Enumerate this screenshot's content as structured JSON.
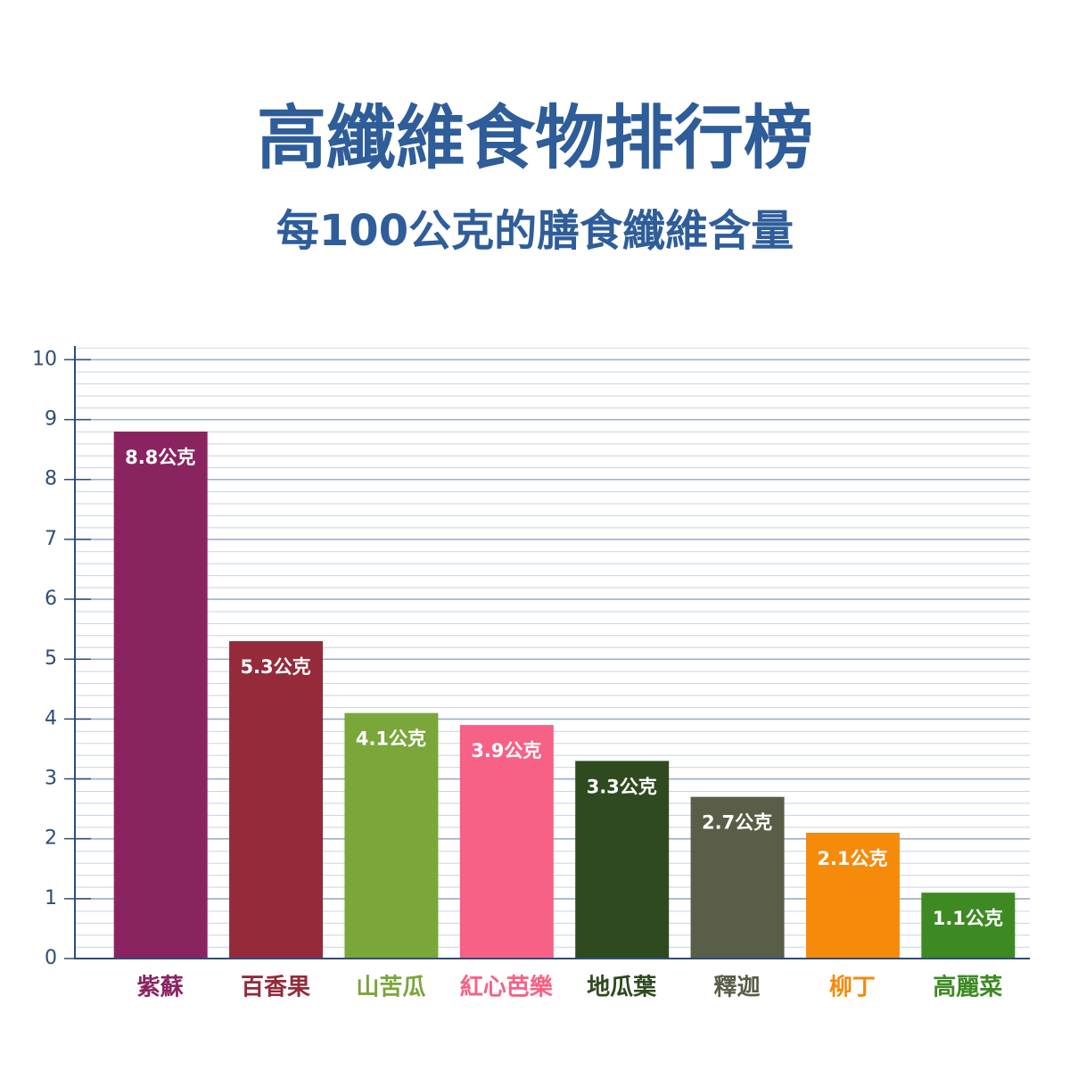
{
  "chart_data": {
    "type": "bar",
    "title": "高纖維食物排行榜",
    "subtitle": "每100公克的膳食纖維含量",
    "categories": [
      "紫蘇",
      "百香果",
      "山苦瓜",
      "紅心芭樂",
      "地瓜葉",
      "釋迦",
      "柳丁",
      "高麗菜"
    ],
    "values": [
      8.8,
      5.3,
      4.1,
      3.9,
      3.3,
      2.7,
      2.1,
      1.1
    ],
    "value_labels": [
      "8.8公克",
      "5.3公克",
      "4.1公克",
      "3.9公克",
      "3.3公克",
      "2.7公克",
      "2.1公克",
      "1.1公克"
    ],
    "colors": [
      "#8a2461",
      "#952a3a",
      "#7aa63a",
      "#f76186",
      "#2f4a1f",
      "#5a5d47",
      "#f58a0b",
      "#3d8a23"
    ],
    "ylim": [
      0,
      10.2
    ],
    "yticks": [
      0,
      1,
      2,
      3,
      4,
      5,
      6,
      7,
      8,
      9,
      10
    ],
    "grid": true
  }
}
